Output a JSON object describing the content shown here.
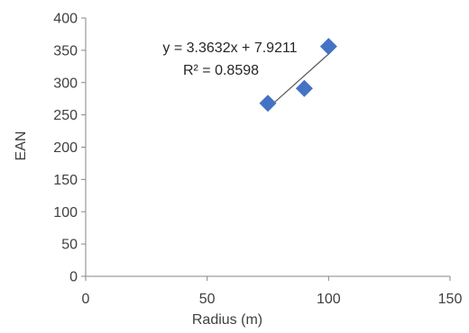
{
  "chart_data": {
    "type": "scatter",
    "title": "",
    "xlabel": "Radius (m)",
    "ylabel": "EAN",
    "xlim": [
      0,
      150
    ],
    "ylim": [
      0,
      400
    ],
    "x_ticks": [
      "0",
      "50",
      "100",
      "150"
    ],
    "y_ticks": [
      "0",
      "50",
      "100",
      "150",
      "200",
      "250",
      "300",
      "350",
      "400"
    ],
    "grid": false,
    "legend": "none",
    "series": [
      {
        "marker": "diamond",
        "color": "#4472C4",
        "points": [
          {
            "x": 75,
            "y": 268
          },
          {
            "x": 90,
            "y": 291
          },
          {
            "x": 100,
            "y": 356
          }
        ]
      }
    ],
    "trendline": {
      "type": "linear",
      "slope": 3.3632,
      "intercept": 7.9211,
      "x_range": [
        75,
        100
      ],
      "color": "#595959"
    },
    "annotations": {
      "equation": "y = 3.3632x + 7.9211",
      "r_squared": "R² = 0.8598"
    }
  }
}
